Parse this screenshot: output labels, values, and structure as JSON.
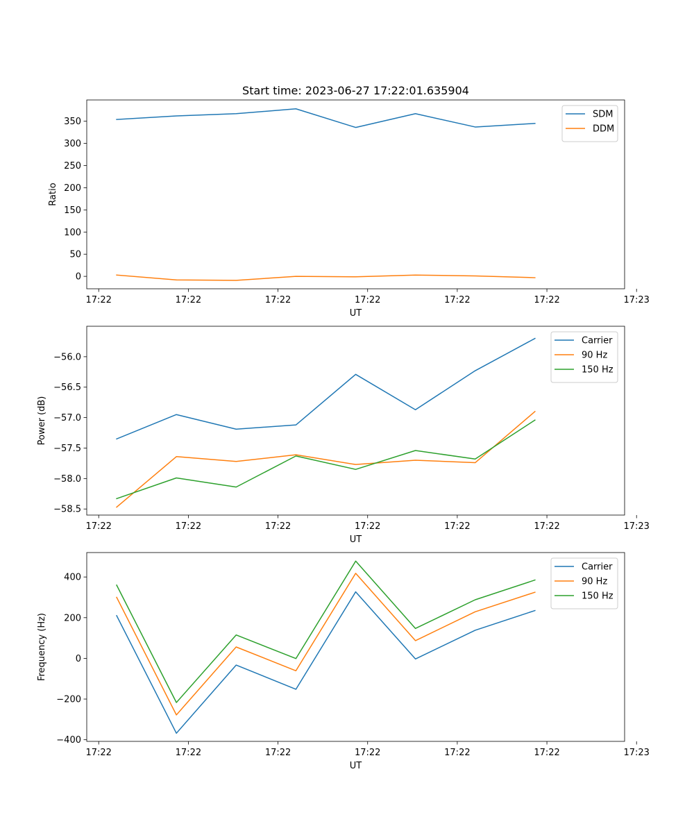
{
  "chart_data": [
    {
      "type": "line",
      "title": "Start time: 2023-06-27 17:22:01.635904",
      "xlabel": "UT",
      "ylabel": "Ratio",
      "x": [
        0,
        1,
        2,
        3,
        4,
        5,
        6,
        7
      ],
      "xlim": [
        -0.5,
        8.5
      ],
      "xticks": [
        -0.3,
        1.2,
        2.7,
        4.2,
        5.7,
        7.2,
        8.7
      ],
      "xtick_labels": [
        "17:22",
        "17:22",
        "17:22",
        "17:22",
        "17:22",
        "17:22",
        "17:23"
      ],
      "ylim": [
        -28,
        398
      ],
      "yticks": [
        0,
        50,
        100,
        150,
        200,
        250,
        300,
        350
      ],
      "legend": "top-right",
      "grid": false,
      "series": [
        {
          "name": "SDM",
          "color": "#1f77b4",
          "values": [
            354,
            362,
            367,
            378,
            336,
            367,
            337,
            345
          ]
        },
        {
          "name": "DDM",
          "color": "#ff7f0e",
          "values": [
            3,
            -8,
            -9,
            0,
            -1,
            3,
            1,
            -3
          ]
        }
      ]
    },
    {
      "type": "line",
      "title": "",
      "xlabel": "UT",
      "ylabel": "Power (dB)",
      "x": [
        0,
        1,
        2,
        3,
        4,
        5,
        6,
        7
      ],
      "xlim": [
        -0.5,
        8.5
      ],
      "xticks": [
        -0.3,
        1.2,
        2.7,
        4.2,
        5.7,
        7.2,
        8.7
      ],
      "xtick_labels": [
        "17:22",
        "17:22",
        "17:22",
        "17:22",
        "17:22",
        "17:22",
        "17:23"
      ],
      "ylim": [
        -58.6,
        -55.5
      ],
      "yticks": [
        -58.5,
        -58.0,
        -57.5,
        -57.0,
        -56.5,
        -56.0
      ],
      "ytick_labels": [
        "−58.5",
        "−58.0",
        "−57.5",
        "−57.0",
        "−56.5",
        "−56.0"
      ],
      "legend": "top-right",
      "grid": false,
      "series": [
        {
          "name": "Carrier",
          "color": "#1f77b4",
          "values": [
            -57.35,
            -56.95,
            -57.19,
            -57.12,
            -56.29,
            -56.87,
            -56.23,
            -55.7
          ]
        },
        {
          "name": "90 Hz",
          "color": "#ff7f0e",
          "values": [
            -58.47,
            -57.64,
            -57.72,
            -57.61,
            -57.77,
            -57.7,
            -57.74,
            -56.9
          ]
        },
        {
          "name": "150 Hz",
          "color": "#2ca02c",
          "values": [
            -58.33,
            -57.99,
            -58.14,
            -57.63,
            -57.85,
            -57.54,
            -57.68,
            -57.04
          ]
        }
      ]
    },
    {
      "type": "line",
      "title": "",
      "xlabel": "UT",
      "ylabel": "Frequency (Hz)",
      "x": [
        0,
        1,
        2,
        3,
        4,
        5,
        6,
        7
      ],
      "xlim": [
        -0.5,
        8.5
      ],
      "xticks": [
        -0.3,
        1.2,
        2.7,
        4.2,
        5.7,
        7.2,
        8.7
      ],
      "xtick_labels": [
        "17:22",
        "17:22",
        "17:22",
        "17:22",
        "17:22",
        "17:22",
        "17:23"
      ],
      "ylim": [
        -408,
        520
      ],
      "yticks": [
        -400,
        -200,
        0,
        200,
        400
      ],
      "ytick_labels": [
        "−400",
        "−200",
        "0",
        "200",
        "400"
      ],
      "legend": "top-right",
      "grid": false,
      "series": [
        {
          "name": "Carrier",
          "color": "#1f77b4",
          "values": [
            210,
            -368,
            -33,
            -152,
            327,
            -3,
            138,
            235
          ]
        },
        {
          "name": "90 Hz",
          "color": "#ff7f0e",
          "values": [
            300,
            -278,
            56,
            -61,
            418,
            87,
            229,
            325
          ]
        },
        {
          "name": "150 Hz",
          "color": "#2ca02c",
          "values": [
            360,
            -217,
            115,
            -1,
            478,
            147,
            288,
            385
          ]
        }
      ]
    }
  ]
}
